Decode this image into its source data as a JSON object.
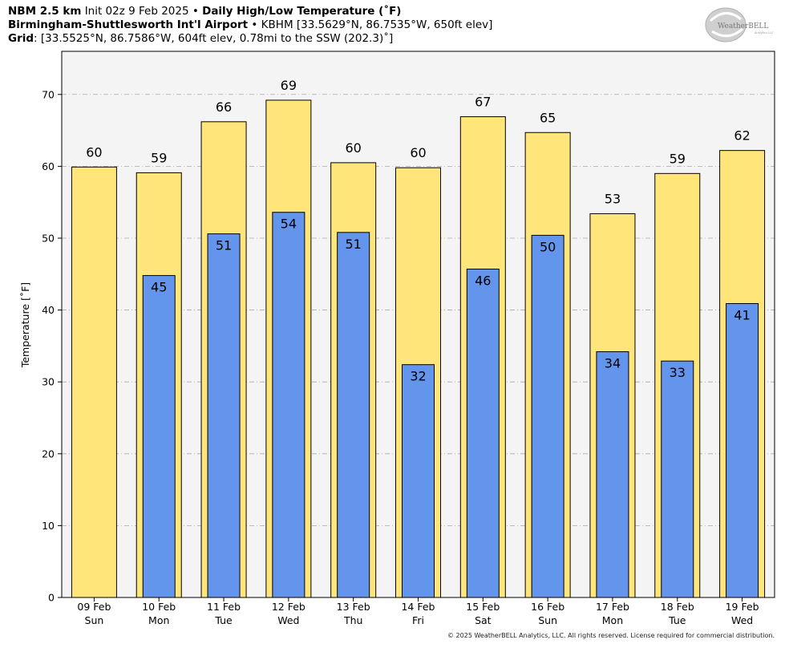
{
  "header": {
    "model": "NBM 2.5 km",
    "init": "Init 02z 9 Feb 2025",
    "product": "Daily High/Low Temperature (˚F)",
    "station_name": "Birmingham-Shuttlesworth Int'l Airport",
    "station_info": "KBHM [33.5629°N, 86.7535°W, 650ft elev]",
    "grid_label": "Grid",
    "grid_info": "[33.5525°N, 86.7586°W, 604ft elev, 0.78mi to the SSW (202.3)˚]",
    "separator": "•"
  },
  "logo": {
    "text": "WeatherBELL",
    "subtext": "Analytics LLC"
  },
  "footer": "© 2025 WeatherBELL Analytics, LLC. All rights reserved. License required for commercial distribution.",
  "chart_data": {
    "type": "bar",
    "ylabel": "Temperature [˚F]",
    "ylim": [
      0,
      76
    ],
    "yticks": [
      0,
      10,
      20,
      30,
      40,
      50,
      60,
      70
    ],
    "grid": true,
    "categories": [
      {
        "date": "09 Feb",
        "day": "Sun"
      },
      {
        "date": "10 Feb",
        "day": "Mon"
      },
      {
        "date": "11 Feb",
        "day": "Tue"
      },
      {
        "date": "12 Feb",
        "day": "Wed"
      },
      {
        "date": "13 Feb",
        "day": "Thu"
      },
      {
        "date": "14 Feb",
        "day": "Fri"
      },
      {
        "date": "15 Feb",
        "day": "Sat"
      },
      {
        "date": "16 Feb",
        "day": "Sun"
      },
      {
        "date": "17 Feb",
        "day": "Mon"
      },
      {
        "date": "18 Feb",
        "day": "Tue"
      },
      {
        "date": "19 Feb",
        "day": "Wed"
      }
    ],
    "series": [
      {
        "role": "high",
        "color": "#ffe57a",
        "values": [
          59.9,
          59.1,
          66.2,
          69.2,
          60.5,
          59.8,
          66.9,
          64.7,
          53.4,
          59.0,
          62.2
        ],
        "labels": [
          "60",
          "59",
          "66",
          "69",
          "60",
          "60",
          "67",
          "65",
          "53",
          "59",
          "62"
        ]
      },
      {
        "role": "low",
        "color": "#6495ed",
        "values": [
          null,
          44.8,
          50.6,
          53.6,
          50.8,
          32.4,
          45.7,
          50.4,
          34.2,
          32.9,
          40.9
        ],
        "labels": [
          null,
          "45",
          "51",
          "54",
          "51",
          "32",
          "46",
          "50",
          "34",
          "33",
          "41"
        ]
      }
    ],
    "colors": {
      "plot_background": "#f4f4f4",
      "grid": "#aaaaaa"
    }
  }
}
